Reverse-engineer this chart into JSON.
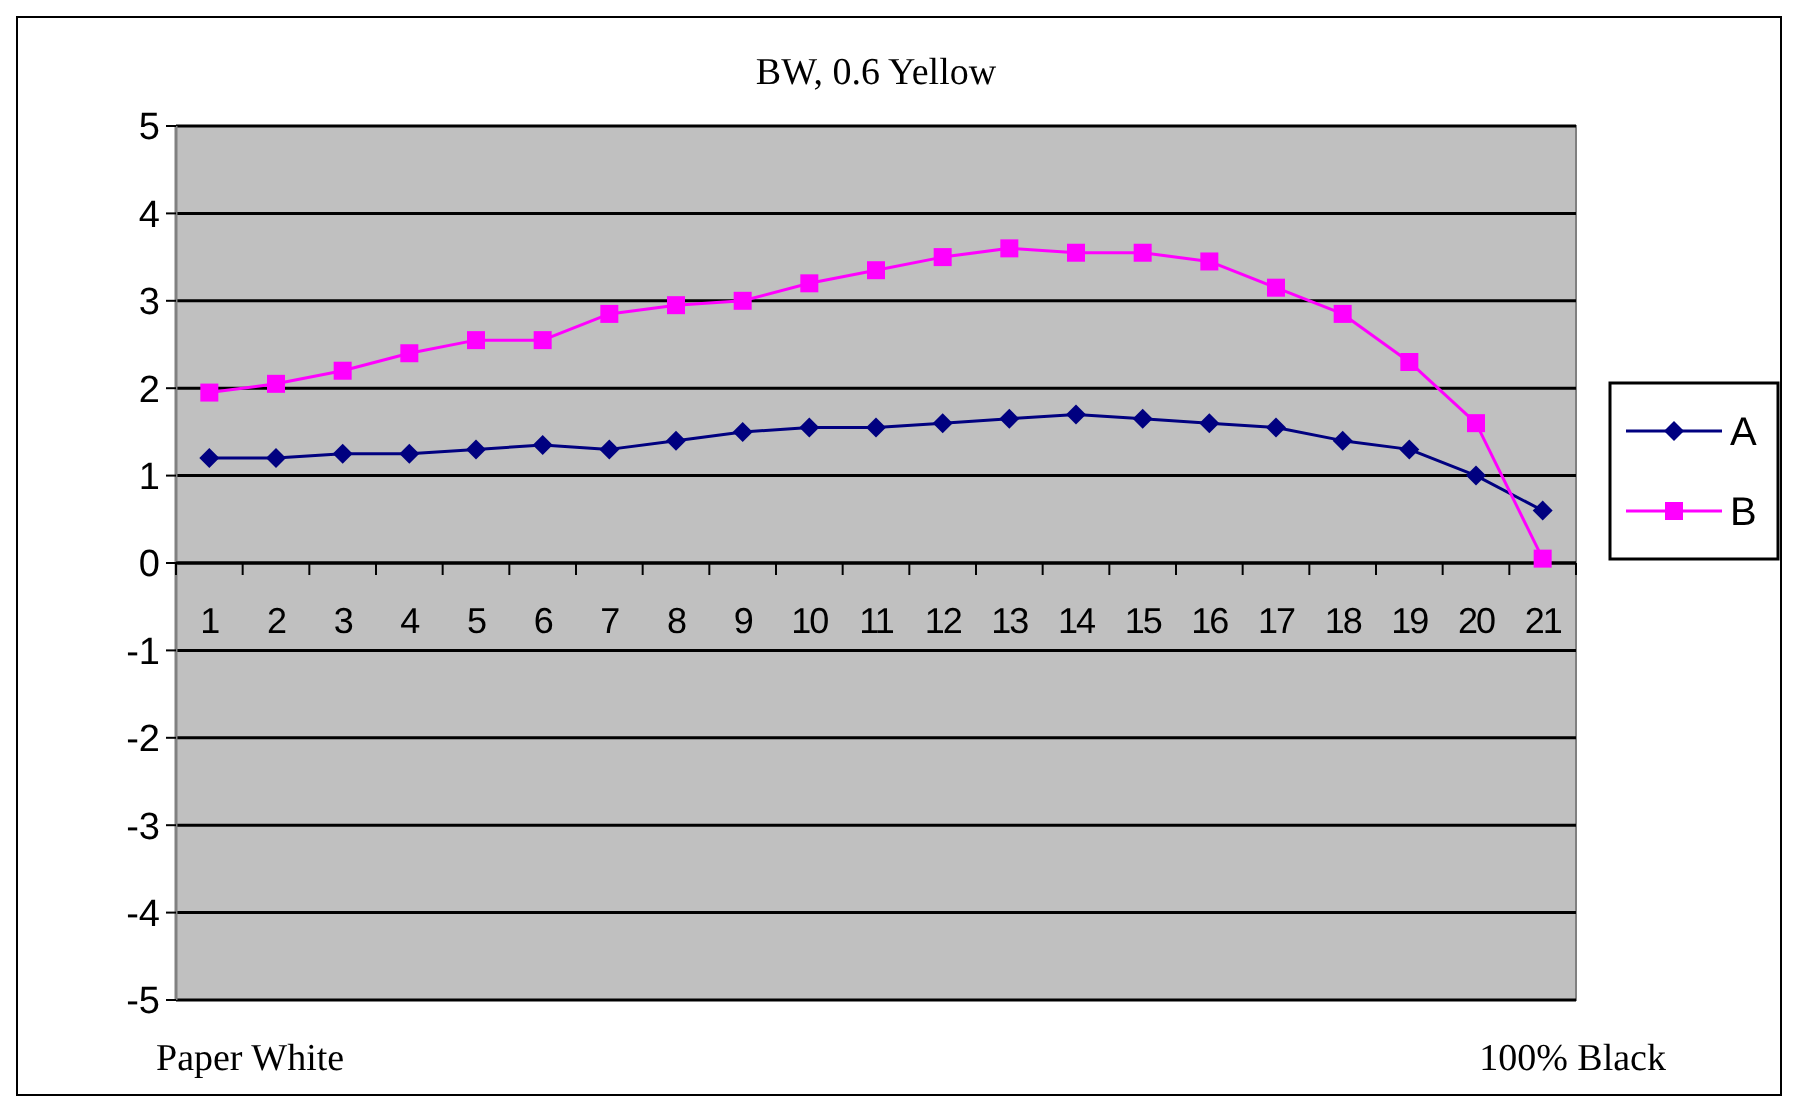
{
  "chart_data": {
    "type": "line",
    "title": "BW, 0.6 Yellow",
    "categories": [
      "1",
      "2",
      "3",
      "4",
      "5",
      "6",
      "7",
      "8",
      "9",
      "10",
      "11",
      "12",
      "13",
      "14",
      "15",
      "16",
      "17",
      "18",
      "19",
      "20",
      "21"
    ],
    "series": [
      {
        "name": "A",
        "color": "#000080",
        "marker": "diamond",
        "values": [
          1.2,
          1.2,
          1.25,
          1.25,
          1.3,
          1.35,
          1.3,
          1.4,
          1.5,
          1.55,
          1.55,
          1.6,
          1.65,
          1.7,
          1.65,
          1.6,
          1.55,
          1.4,
          1.3,
          1.0,
          0.6
        ]
      },
      {
        "name": "B",
        "color": "#ff00ff",
        "marker": "square",
        "values": [
          1.95,
          2.05,
          2.2,
          2.4,
          2.55,
          2.55,
          2.85,
          2.95,
          3.0,
          3.2,
          3.35,
          3.5,
          3.6,
          3.55,
          3.55,
          3.45,
          3.15,
          2.85,
          2.3,
          1.6,
          0.05
        ]
      }
    ],
    "ylim": [
      -5,
      5
    ],
    "yticks": [
      -5,
      -4,
      -3,
      -2,
      -1,
      0,
      1,
      2,
      3,
      4,
      5
    ],
    "grid": "y",
    "legend": "right",
    "annotations": [
      "Paper White",
      "100% Black"
    ]
  }
}
